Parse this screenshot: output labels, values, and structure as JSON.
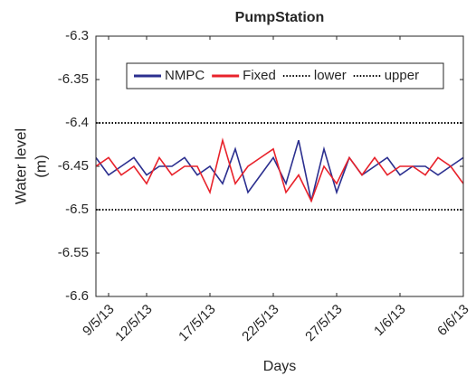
{
  "chart_data": {
    "type": "line",
    "title": "PumpStation",
    "xlabel": "Days",
    "ylabel": [
      "Water level",
      "(m)"
    ],
    "x": [
      "2013-05-08",
      "2013-05-09",
      "2013-05-10",
      "2013-05-11",
      "2013-05-12",
      "2013-05-13",
      "2013-05-14",
      "2013-05-15",
      "2013-05-16",
      "2013-05-17",
      "2013-05-18",
      "2013-05-19",
      "2013-05-20",
      "2013-05-21",
      "2013-05-22",
      "2013-05-23",
      "2013-05-24",
      "2013-05-25",
      "2013-05-26",
      "2013-05-27",
      "2013-05-28",
      "2013-05-29",
      "2013-05-30",
      "2013-05-31",
      "2013-06-01",
      "2013-06-02",
      "2013-06-03",
      "2013-06-04",
      "2013-06-05",
      "2013-06-06"
    ],
    "series": [
      {
        "name": "NMPC",
        "color": "#2b2f8f",
        "line_style": "solid",
        "values": [
          -6.44,
          -6.46,
          -6.45,
          -6.44,
          -6.46,
          -6.45,
          -6.45,
          -6.44,
          -6.46,
          -6.45,
          -6.47,
          -6.43,
          -6.48,
          -6.46,
          -6.44,
          -6.47,
          -6.42,
          -6.49,
          -6.43,
          -6.48,
          -6.44,
          -6.46,
          -6.45,
          -6.44,
          -6.46,
          -6.45,
          -6.45,
          -6.46,
          -6.45,
          -6.44
        ]
      },
      {
        "name": "Fixed",
        "color": "#e8222b",
        "line_style": "solid",
        "values": [
          -6.45,
          -6.44,
          -6.46,
          -6.45,
          -6.47,
          -6.44,
          -6.46,
          -6.45,
          -6.45,
          -6.48,
          -6.42,
          -6.47,
          -6.45,
          -6.44,
          -6.43,
          -6.48,
          -6.46,
          -6.49,
          -6.45,
          -6.47,
          -6.44,
          -6.46,
          -6.44,
          -6.46,
          -6.45,
          -6.45,
          -6.46,
          -6.44,
          -6.45,
          -6.47
        ]
      },
      {
        "name": "lower",
        "color": "#000000",
        "line_style": "dotted",
        "values": [
          -6.5,
          -6.5,
          -6.5,
          -6.5,
          -6.5,
          -6.5,
          -6.5,
          -6.5,
          -6.5,
          -6.5,
          -6.5,
          -6.5,
          -6.5,
          -6.5,
          -6.5,
          -6.5,
          -6.5,
          -6.5,
          -6.5,
          -6.5,
          -6.5,
          -6.5,
          -6.5,
          -6.5,
          -6.5,
          -6.5,
          -6.5,
          -6.5,
          -6.5,
          -6.5
        ]
      },
      {
        "name": "upper",
        "color": "#000000",
        "line_style": "dotted",
        "values": [
          -6.4,
          -6.4,
          -6.4,
          -6.4,
          -6.4,
          -6.4,
          -6.4,
          -6.4,
          -6.4,
          -6.4,
          -6.4,
          -6.4,
          -6.4,
          -6.4,
          -6.4,
          -6.4,
          -6.4,
          -6.4,
          -6.4,
          -6.4,
          -6.4,
          -6.4,
          -6.4,
          -6.4,
          -6.4,
          -6.4,
          -6.4,
          -6.4,
          -6.4,
          -6.4
        ]
      }
    ],
    "xlim": [
      "2013-05-08",
      "2013-06-06"
    ],
    "xticks": [
      {
        "value": "2013-05-09",
        "label": "9/5/13"
      },
      {
        "value": "2013-05-12",
        "label": "12/5/13"
      },
      {
        "value": "2013-05-17",
        "label": "17/5/13"
      },
      {
        "value": "2013-05-22",
        "label": "22/5/13"
      },
      {
        "value": "2013-05-27",
        "label": "27/5/13"
      },
      {
        "value": "2013-06-01",
        "label": "1/6/13"
      },
      {
        "value": "2013-06-06",
        "label": "6/6/13"
      }
    ],
    "ylim": [
      -6.6,
      -6.3
    ],
    "yticks": [
      -6.6,
      -6.55,
      -6.5,
      -6.45,
      -6.4,
      -6.35,
      -6.3
    ],
    "legend": "top",
    "grid": false
  }
}
